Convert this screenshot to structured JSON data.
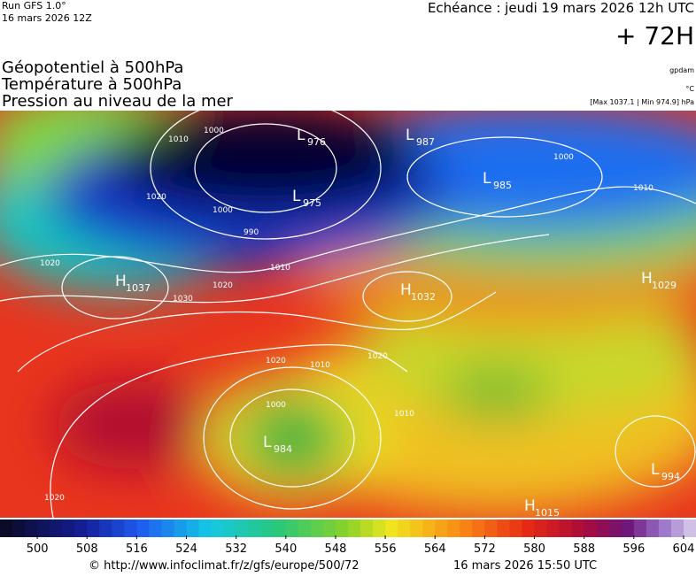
{
  "header": {
    "run": "Run GFS 1.0°",
    "run_date": "16 mars 2026 12Z",
    "valid": "Echéance : jeudi 19 mars 2026 12h UTC",
    "lead": "+ 72H"
  },
  "titles": [
    "Géopotentiel à 500hPa",
    "Température à 500hPa",
    "Pression au niveau de la mer"
  ],
  "units": {
    "geopotential": "gpdam",
    "temperature": "°C",
    "pressure_range": "[Max 1037.1 | Min 974.9] hPa"
  },
  "centers": [
    {
      "letter": "L",
      "value": 976
    },
    {
      "letter": "L",
      "value": 987
    },
    {
      "letter": "L",
      "value": 985
    },
    {
      "letter": "L",
      "value": 975
    },
    {
      "letter": "H",
      "value": 1037
    },
    {
      "letter": "H",
      "value": 1032
    },
    {
      "letter": "H",
      "value": 1029
    },
    {
      "letter": "L",
      "value": 984
    },
    {
      "letter": "L",
      "value": 994
    },
    {
      "letter": "H",
      "value": 1015
    }
  ],
  "isobar_labels": [
    1010,
    1000,
    1020,
    990,
    1000,
    1010,
    1020,
    1030,
    1020,
    1020,
    1010,
    1020,
    1000,
    1010,
    1020,
    1000,
    1010
  ],
  "colorbar": {
    "range": [
      494,
      606
    ],
    "ticks": [
      500,
      508,
      516,
      524,
      532,
      540,
      548,
      556,
      564,
      572,
      580,
      588,
      596,
      604
    ]
  },
  "footer": {
    "url": "© http://www.infoclimat.fr/z/gfs/europe/500/72",
    "generated": "16 mars 2026 15:50 UTC"
  }
}
